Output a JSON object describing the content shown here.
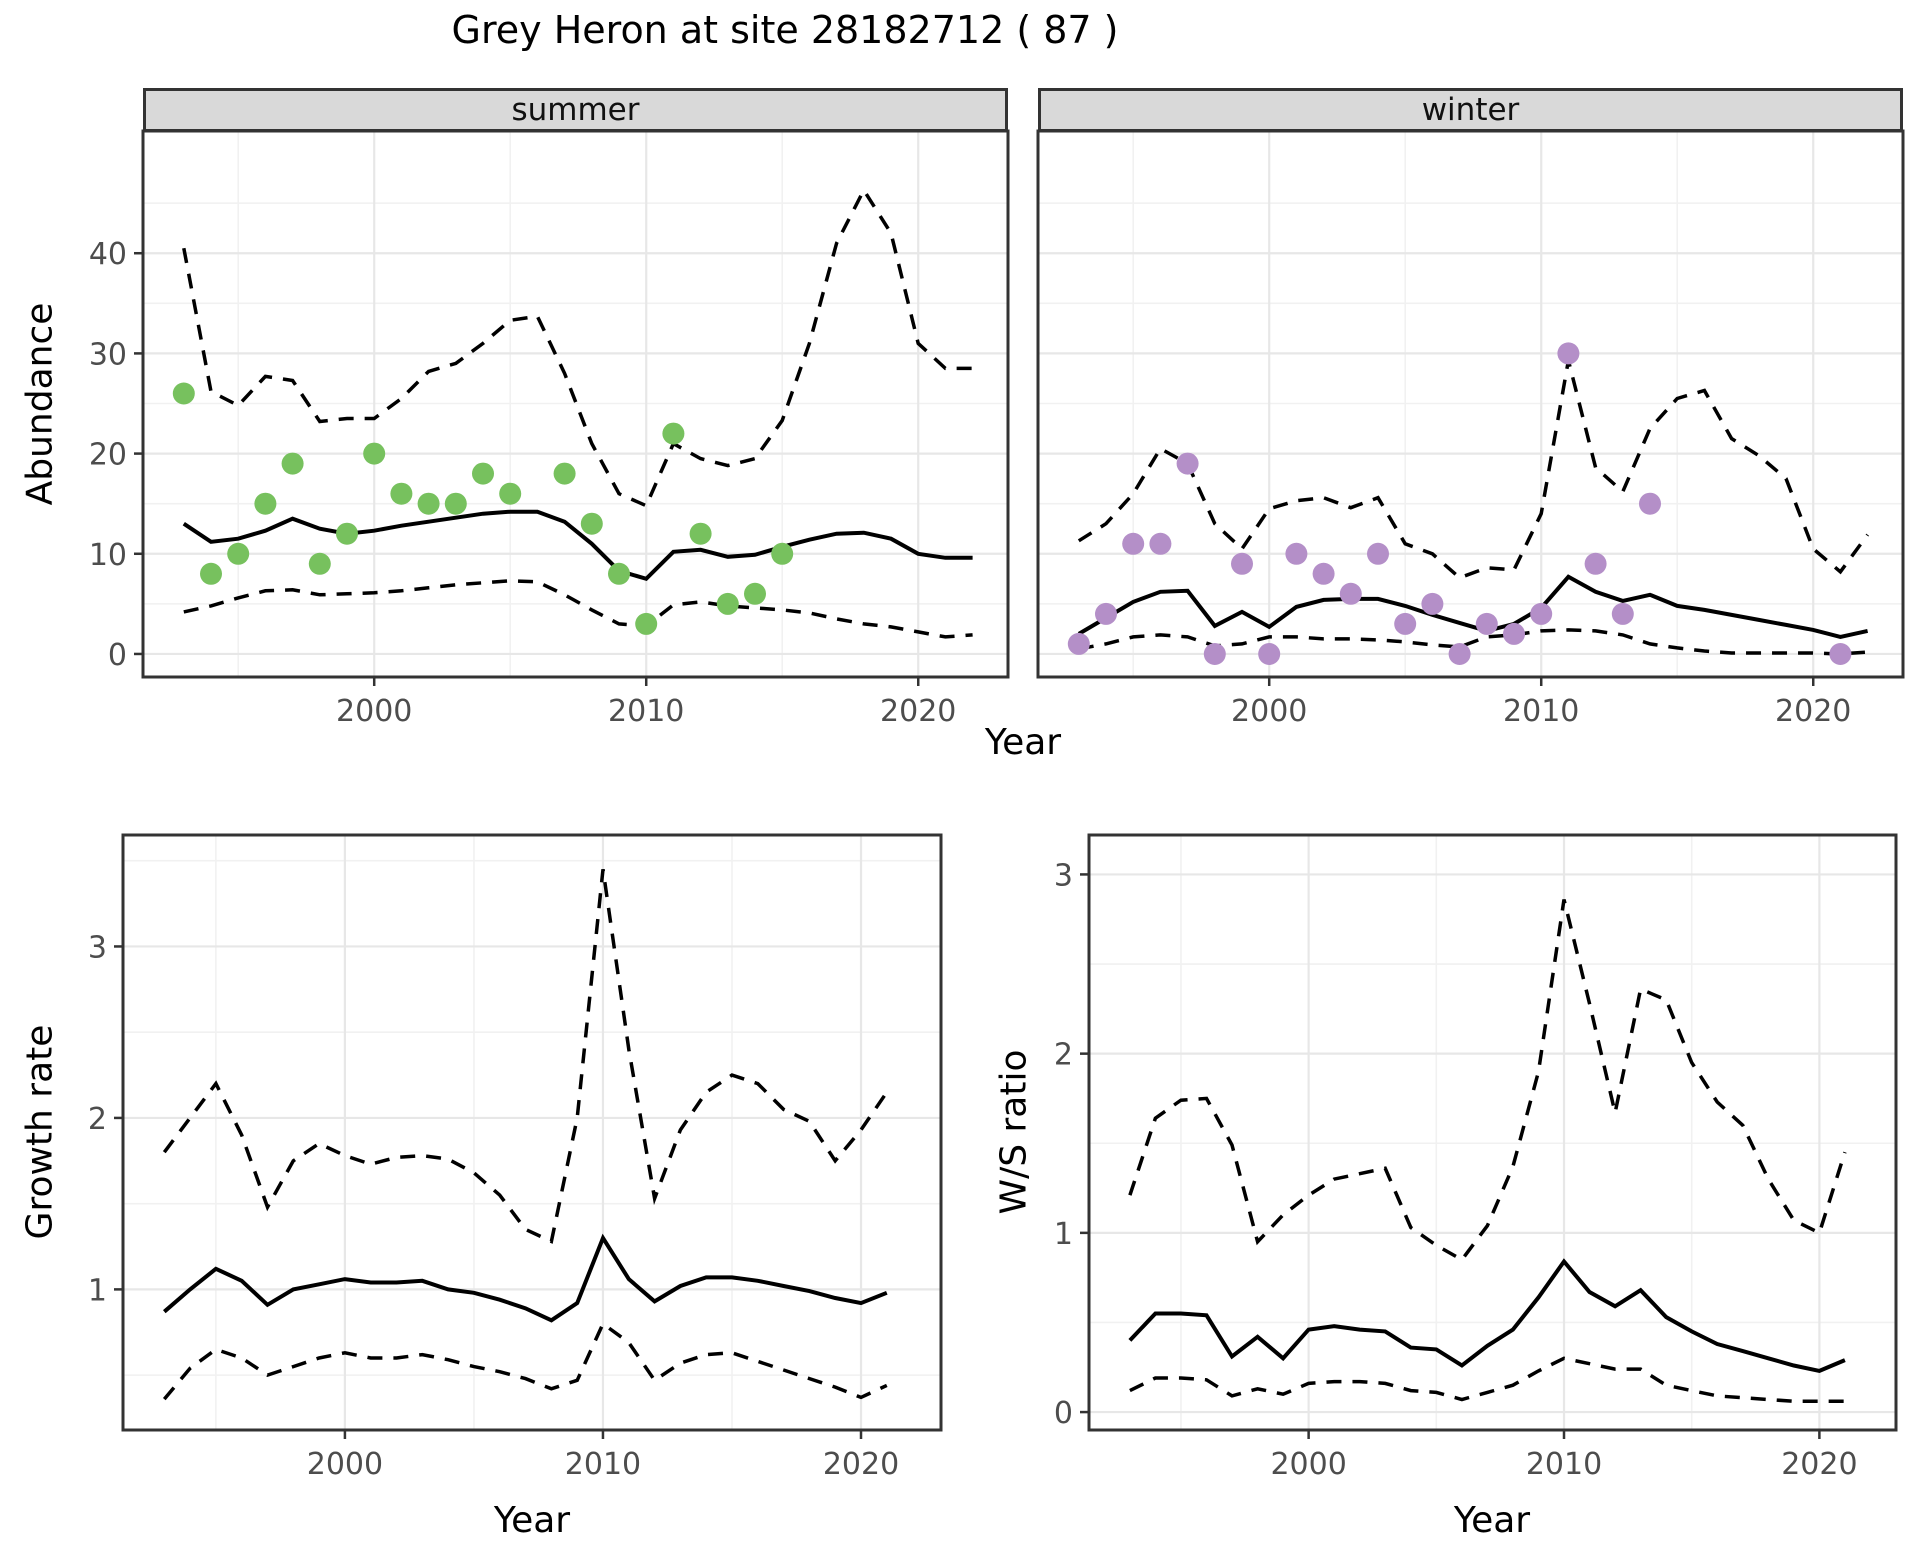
{
  "title": "Grey Heron at site 28182712 ( 87 )",
  "axis": {
    "year_label": "Year",
    "abundance_label": "Abundance"
  },
  "facets": {
    "summer": "summer",
    "winter": "winter"
  },
  "colors": {
    "summer_point": "#77C15E",
    "winter_point": "#B48FC8",
    "line": "#000000",
    "strip_bg": "#D9D9D9",
    "strip_border": "#333333",
    "panel_border": "#333333",
    "grid_major": "#E7E7E7",
    "grid_minor": "#F1F1F1",
    "tick_mark": "#333333",
    "tick_text": "#4D4D4D"
  },
  "chart_data": [
    {
      "id": "abundance_summer",
      "type": "line",
      "facet": "summer",
      "xlabel": "Year",
      "ylabel": "Abundance",
      "xlim": [
        1991.5,
        2023.3
      ],
      "ylim": [
        -2.3,
        52.2
      ],
      "xticks": [
        2000,
        2010,
        2020
      ],
      "yticks": [
        0,
        10,
        20,
        30,
        40
      ],
      "xminor": [
        1995,
        2005,
        2015
      ],
      "yminor": [
        5,
        15,
        25,
        35,
        45
      ],
      "show_ylab": true,
      "point_color": "#77C15E",
      "years": [
        1993,
        1994,
        1995,
        1996,
        1997,
        1998,
        1999,
        2000,
        2001,
        2002,
        2003,
        2004,
        2005,
        2006,
        2007,
        2008,
        2009,
        2010,
        2011,
        2012,
        2013,
        2014,
        2015,
        2016,
        2017,
        2018,
        2019,
        2020,
        2021,
        2022
      ],
      "series": [
        {
          "name": "estimate",
          "style": "solid",
          "values": [
            13,
            11.2,
            11.5,
            12.3,
            13.5,
            12.5,
            12,
            12.3,
            12.8,
            13.2,
            13.6,
            14,
            14.2,
            14.2,
            13.2,
            11,
            8.3,
            7.5,
            10.2,
            10.4,
            9.7,
            9.9,
            10.7,
            11.4,
            12,
            12.1,
            11.5,
            10,
            9.6,
            9.6
          ]
        },
        {
          "name": "upper 95% CI",
          "style": "dashed",
          "values": [
            40.5,
            26.2,
            24.8,
            27.7,
            27.3,
            23.2,
            23.5,
            23.5,
            25.5,
            28.2,
            29,
            31,
            33.3,
            33.7,
            28,
            21,
            16,
            14.8,
            21,
            19.5,
            18.8,
            19.5,
            23.3,
            31,
            41,
            46.3,
            42,
            31,
            28.5,
            28.5
          ]
        },
        {
          "name": "lower 95% CI",
          "style": "dashed",
          "values": [
            4.2,
            4.8,
            5.6,
            6.3,
            6.4,
            5.9,
            6,
            6.1,
            6.3,
            6.6,
            6.9,
            7.1,
            7.3,
            7.2,
            5.9,
            4.4,
            3,
            2.8,
            4.9,
            5.2,
            4.8,
            4.6,
            4.4,
            4.1,
            3.5,
            3,
            2.7,
            2.2,
            1.7,
            1.9
          ]
        }
      ],
      "points": [
        [
          1993,
          26
        ],
        [
          1994,
          8
        ],
        [
          1995,
          10
        ],
        [
          1996,
          15
        ],
        [
          1997,
          19
        ],
        [
          1998,
          9
        ],
        [
          1999,
          12
        ],
        [
          2000,
          20
        ],
        [
          2001,
          16
        ],
        [
          2002,
          15
        ],
        [
          2003,
          15
        ],
        [
          2004,
          18
        ],
        [
          2005,
          16
        ],
        [
          2007,
          18
        ],
        [
          2008,
          13
        ],
        [
          2009,
          8
        ],
        [
          2010,
          3
        ],
        [
          2011,
          22
        ],
        [
          2012,
          12
        ],
        [
          2013,
          5
        ],
        [
          2014,
          6
        ],
        [
          2015,
          10
        ]
      ]
    },
    {
      "id": "abundance_winter",
      "type": "line",
      "facet": "winter",
      "xlabel": "Year",
      "ylabel": "Abundance",
      "xlim": [
        1991.5,
        2023.3
      ],
      "ylim": [
        -2.3,
        52.2
      ],
      "xticks": [
        2000,
        2010,
        2020
      ],
      "yticks": [
        0,
        10,
        20,
        30,
        40
      ],
      "xminor": [
        1995,
        2005,
        2015
      ],
      "yminor": [
        5,
        15,
        25,
        35,
        45
      ],
      "show_ylab": false,
      "point_color": "#B48FC8",
      "years": [
        1993,
        1994,
        1995,
        1996,
        1997,
        1998,
        1999,
        2000,
        2001,
        2002,
        2003,
        2004,
        2005,
        2006,
        2007,
        2008,
        2009,
        2010,
        2011,
        2012,
        2013,
        2014,
        2015,
        2016,
        2017,
        2018,
        2019,
        2020,
        2021,
        2022
      ],
      "series": [
        {
          "name": "estimate",
          "style": "solid",
          "values": [
            2,
            3.6,
            5.2,
            6.2,
            6.3,
            2.8,
            4.2,
            2.7,
            4.7,
            5.4,
            5.5,
            5.5,
            4.8,
            3.9,
            3.1,
            2.3,
            3,
            4.6,
            7.7,
            6.2,
            5.3,
            5.9,
            4.8,
            4.4,
            3.9,
            3.4,
            2.9,
            2.4,
            1.7,
            2.3
          ]
        },
        {
          "name": "upper 95% CI",
          "style": "dashed",
          "values": [
            11.3,
            13,
            16,
            20.5,
            19,
            13,
            10.5,
            14.5,
            15.3,
            15.6,
            14.6,
            15.6,
            11,
            10,
            7.6,
            8.6,
            8.4,
            14,
            29.3,
            18.6,
            16.2,
            22.5,
            25.5,
            26.3,
            21.5,
            19.8,
            17.5,
            10.5,
            8.2,
            11.9
          ]
        },
        {
          "name": "lower 95% CI",
          "style": "dashed",
          "values": [
            0.5,
            1,
            1.7,
            1.9,
            1.7,
            0.8,
            1,
            1.7,
            1.7,
            1.5,
            1.5,
            1.4,
            1.2,
            0.9,
            0.7,
            1.7,
            1.9,
            2.3,
            2.4,
            2.3,
            1.9,
            1,
            0.6,
            0.3,
            0.1,
            0.1,
            0.1,
            0.1,
            0,
            0.2
          ]
        }
      ],
      "points": [
        [
          1993,
          1
        ],
        [
          1994,
          4
        ],
        [
          1995,
          11
        ],
        [
          1996,
          11
        ],
        [
          1997,
          19
        ],
        [
          1998,
          0
        ],
        [
          1999,
          9
        ],
        [
          2000,
          0
        ],
        [
          2001,
          10
        ],
        [
          2002,
          8
        ],
        [
          2003,
          6
        ],
        [
          2004,
          10
        ],
        [
          2005,
          3
        ],
        [
          2006,
          5
        ],
        [
          2007,
          0
        ],
        [
          2008,
          3
        ],
        [
          2009,
          2
        ],
        [
          2010,
          4
        ],
        [
          2011,
          30
        ],
        [
          2012,
          9
        ],
        [
          2013,
          4
        ],
        [
          2014,
          15
        ],
        [
          2021,
          0
        ]
      ]
    },
    {
      "id": "growth_rate",
      "type": "line",
      "facet": "",
      "xlabel": "Year",
      "ylabel": "Growth rate",
      "xlim": [
        1991.4,
        2023.1
      ],
      "ylim": [
        0.18,
        3.65
      ],
      "xticks": [
        2000,
        2010,
        2020
      ],
      "yticks": [
        1,
        2,
        3
      ],
      "xminor": [
        1995,
        2005,
        2015
      ],
      "yminor": [
        0.5,
        1.5,
        2.5,
        3.5
      ],
      "show_ylab": true,
      "years": [
        1993,
        1994,
        1995,
        1996,
        1997,
        1998,
        1999,
        2000,
        2001,
        2002,
        2003,
        2004,
        2005,
        2006,
        2007,
        2008,
        2009,
        2010,
        2011,
        2012,
        2013,
        2014,
        2015,
        2016,
        2017,
        2018,
        2019,
        2020,
        2021
      ],
      "series": [
        {
          "name": "estimate",
          "style": "solid",
          "values": [
            0.87,
            1,
            1.12,
            1.05,
            0.91,
            1,
            1.03,
            1.06,
            1.04,
            1.04,
            1.05,
            1,
            0.98,
            0.94,
            0.89,
            0.82,
            0.92,
            1.3,
            1.06,
            0.93,
            1.02,
            1.07,
            1.07,
            1.05,
            1.02,
            0.99,
            0.95,
            0.92,
            0.98
          ]
        },
        {
          "name": "upper 95% CI",
          "style": "dashed",
          "values": [
            1.8,
            2,
            2.2,
            1.9,
            1.48,
            1.75,
            1.85,
            1.78,
            1.73,
            1.77,
            1.78,
            1.76,
            1.68,
            1.55,
            1.35,
            1.28,
            2,
            3.45,
            2.4,
            1.53,
            1.93,
            2.15,
            2.25,
            2.2,
            2.05,
            1.98,
            1.75,
            1.93,
            2.15
          ]
        },
        {
          "name": "lower 95% CI",
          "style": "dashed",
          "values": [
            0.36,
            0.54,
            0.65,
            0.6,
            0.5,
            0.55,
            0.6,
            0.63,
            0.6,
            0.6,
            0.62,
            0.59,
            0.55,
            0.52,
            0.48,
            0.42,
            0.47,
            0.8,
            0.69,
            0.47,
            0.57,
            0.62,
            0.63,
            0.58,
            0.53,
            0.48,
            0.43,
            0.37,
            0.44
          ]
        }
      ],
      "points": []
    },
    {
      "id": "ws_ratio",
      "type": "line",
      "facet": "",
      "xlabel": "Year",
      "ylabel": "W/S ratio",
      "xlim": [
        1991.4,
        2023.0
      ],
      "ylim": [
        -0.1,
        3.22
      ],
      "xticks": [
        2000,
        2010,
        2020
      ],
      "yticks": [
        0,
        1,
        2,
        3
      ],
      "xminor": [
        1995,
        2005,
        2015
      ],
      "yminor": [
        0.5,
        1.5,
        2.5
      ],
      "show_ylab": true,
      "years": [
        1993,
        1994,
        1995,
        1996,
        1997,
        1998,
        1999,
        2000,
        2001,
        2002,
        2003,
        2004,
        2005,
        2006,
        2007,
        2008,
        2009,
        2010,
        2011,
        2012,
        2013,
        2014,
        2015,
        2016,
        2017,
        2018,
        2019,
        2020,
        2021
      ],
      "series": [
        {
          "name": "estimate",
          "style": "solid",
          "values": [
            0.4,
            0.55,
            0.55,
            0.54,
            0.31,
            0.42,
            0.3,
            0.46,
            0.48,
            0.46,
            0.45,
            0.36,
            0.35,
            0.26,
            0.37,
            0.46,
            0.64,
            0.84,
            0.67,
            0.59,
            0.68,
            0.53,
            0.45,
            0.38,
            0.34,
            0.3,
            0.26,
            0.23,
            0.29
          ]
        },
        {
          "name": "upper 95% CI",
          "style": "dashed",
          "values": [
            1.21,
            1.64,
            1.74,
            1.75,
            1.49,
            0.95,
            1.1,
            1.21,
            1.3,
            1.33,
            1.36,
            1.03,
            0.93,
            0.85,
            1.04,
            1.37,
            1.9,
            2.86,
            2.28,
            1.67,
            2.36,
            2.3,
            1.95,
            1.73,
            1.6,
            1.3,
            1.07,
            1,
            1.45
          ]
        },
        {
          "name": "lower 95% CI",
          "style": "dashed",
          "values": [
            0.12,
            0.19,
            0.19,
            0.18,
            0.09,
            0.13,
            0.1,
            0.16,
            0.17,
            0.17,
            0.16,
            0.12,
            0.11,
            0.07,
            0.11,
            0.15,
            0.23,
            0.3,
            0.27,
            0.24,
            0.24,
            0.15,
            0.12,
            0.09,
            0.08,
            0.07,
            0.06,
            0.06,
            0.06
          ]
        }
      ],
      "points": []
    }
  ]
}
